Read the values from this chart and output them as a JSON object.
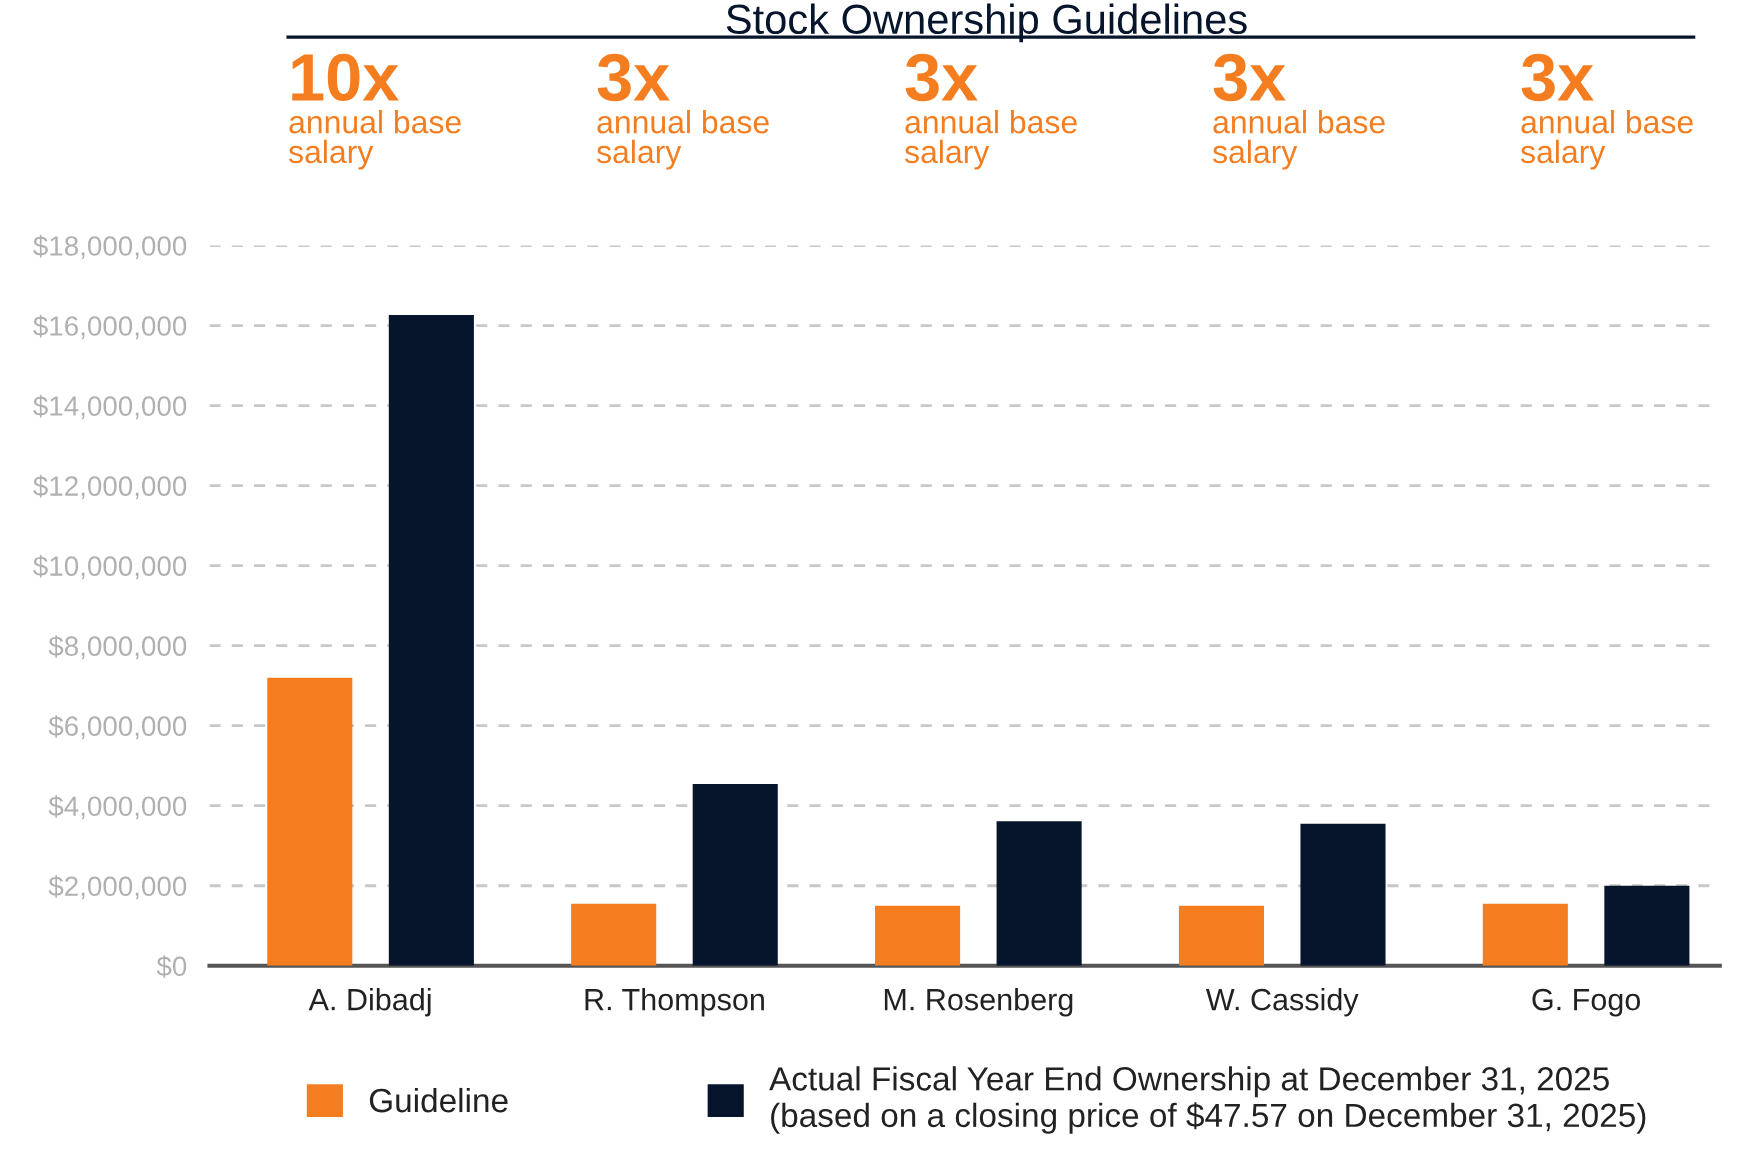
{
  "chart_data": {
    "type": "bar",
    "title": "Stock Ownership Guidelines",
    "categories": [
      "A. Dibadj",
      "R. Thompson",
      "M. Rosenberg",
      "W. Cassidy",
      "G. Fogo"
    ],
    "series": [
      {
        "name": "Guideline",
        "color": "#f47d20",
        "values": [
          7200000,
          1550000,
          1500000,
          1500000,
          1550000
        ]
      },
      {
        "name": "Actual Fiscal Year End Ownership at December 31, 2025\n(based on a closing price of $47.57 on December 31, 2025)",
        "color": "#06152b",
        "values": [
          16260000,
          4540000,
          3610000,
          3550000,
          2000000
        ]
      }
    ],
    "ylim": [
      0,
      18000000
    ],
    "yticks": [
      {
        "value": 0,
        "label": "$0"
      },
      {
        "value": 2000000,
        "label": "$2,000,000"
      },
      {
        "value": 4000000,
        "label": "$4,000,000"
      },
      {
        "value": 6000000,
        "label": "$6,000,000"
      },
      {
        "value": 8000000,
        "label": "$8,000,000"
      },
      {
        "value": 10000000,
        "label": "$10,000,000"
      },
      {
        "value": 12000000,
        "label": "$12,000,000"
      },
      {
        "value": 14000000,
        "label": "$14,000,000"
      },
      {
        "value": 16000000,
        "label": "$16,000,000"
      },
      {
        "value": 18000000,
        "label": "$18,000,000"
      }
    ],
    "grid": "y",
    "legend": "bottom",
    "annotations": [
      "10x annual base salary",
      "3x annual base salary",
      "3x annual base salary",
      "3x annual base salary",
      "3x annual base salary"
    ]
  }
}
